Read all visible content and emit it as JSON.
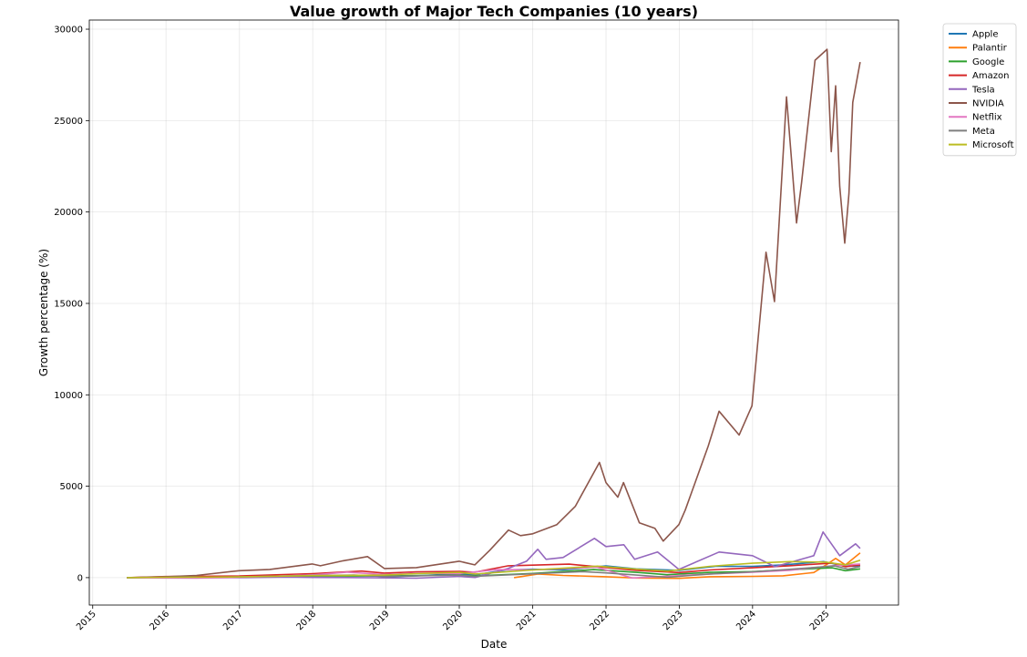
{
  "chart_data": {
    "type": "line",
    "title": "Value growth of Major Tech Companies (10 years)",
    "xlabel": "Date",
    "ylabel": "Growth percentage (%)",
    "xlim": [
      "2014-12-15",
      "2025-12-28"
    ],
    "ylim": [
      -1500,
      30500
    ],
    "x_ticks": [
      "2015",
      "2016",
      "2017",
      "2018",
      "2019",
      "2020",
      "2021",
      "2022",
      "2023",
      "2024",
      "2025"
    ],
    "y_ticks": [
      0,
      5000,
      10000,
      15000,
      20000,
      25000,
      30000
    ],
    "grid": true,
    "legend_position": "outside-top-right",
    "series": [
      {
        "name": "Apple",
        "color": "#1f77b4",
        "points": [
          [
            "2015-06-20",
            0
          ],
          [
            "2016-01-01",
            -10
          ],
          [
            "2016-06-01",
            -5
          ],
          [
            "2017-01-01",
            30
          ],
          [
            "2017-06-01",
            70
          ],
          [
            "2018-01-01",
            90
          ],
          [
            "2018-10-01",
            130
          ],
          [
            "2019-01-01",
            50
          ],
          [
            "2019-06-01",
            100
          ],
          [
            "2020-01-01",
            220
          ],
          [
            "2020-03-20",
            150
          ],
          [
            "2020-08-20",
            420
          ],
          [
            "2021-01-01",
            460
          ],
          [
            "2021-06-01",
            430
          ],
          [
            "2022-01-01",
            640
          ],
          [
            "2022-06-01",
            480
          ],
          [
            "2023-01-01",
            400
          ],
          [
            "2023-07-01",
            620
          ],
          [
            "2024-01-01",
            620
          ],
          [
            "2024-06-01",
            700
          ],
          [
            "2024-12-20",
            880
          ],
          [
            "2025-04-08",
            620
          ],
          [
            "2025-06-20",
            650
          ]
        ]
      },
      {
        "name": "Palantir",
        "color": "#ff7f0e",
        "points": [
          [
            "2020-09-30",
            0
          ],
          [
            "2021-01-27",
            200
          ],
          [
            "2021-06-01",
            120
          ],
          [
            "2022-01-01",
            50
          ],
          [
            "2022-06-01",
            -20
          ],
          [
            "2022-12-30",
            -40
          ],
          [
            "2023-06-01",
            50
          ],
          [
            "2024-01-01",
            70
          ],
          [
            "2024-06-01",
            100
          ],
          [
            "2024-11-01",
            280
          ],
          [
            "2025-01-01",
            700
          ],
          [
            "2025-02-18",
            1050
          ],
          [
            "2025-04-08",
            700
          ],
          [
            "2025-06-20",
            1350
          ]
        ]
      },
      {
        "name": "Google",
        "color": "#2ca02c",
        "points": [
          [
            "2015-06-20",
            0
          ],
          [
            "2016-01-01",
            30
          ],
          [
            "2017-01-01",
            40
          ],
          [
            "2018-01-01",
            90
          ],
          [
            "2019-01-01",
            90
          ],
          [
            "2020-01-01",
            150
          ],
          [
            "2020-03-20",
            90
          ],
          [
            "2021-01-01",
            230
          ],
          [
            "2021-11-01",
            440
          ],
          [
            "2022-06-01",
            290
          ],
          [
            "2022-11-01",
            160
          ],
          [
            "2023-06-01",
            290
          ],
          [
            "2024-01-01",
            330
          ],
          [
            "2024-07-01",
            430
          ],
          [
            "2025-02-01",
            540
          ],
          [
            "2025-04-08",
            380
          ],
          [
            "2025-06-20",
            480
          ]
        ]
      },
      {
        "name": "Amazon",
        "color": "#d62728",
        "points": [
          [
            "2015-06-20",
            0
          ],
          [
            "2016-01-01",
            60
          ],
          [
            "2017-01-01",
            90
          ],
          [
            "2018-01-01",
            220
          ],
          [
            "2018-09-01",
            360
          ],
          [
            "2018-12-24",
            250
          ],
          [
            "2019-06-01",
            320
          ],
          [
            "2020-01-01",
            340
          ],
          [
            "2020-03-20",
            300
          ],
          [
            "2020-09-01",
            650
          ],
          [
            "2021-07-01",
            740
          ],
          [
            "2022-06-01",
            400
          ],
          [
            "2022-12-30",
            280
          ],
          [
            "2023-06-01",
            420
          ],
          [
            "2024-01-01",
            540
          ],
          [
            "2024-07-01",
            650
          ],
          [
            "2025-02-01",
            800
          ],
          [
            "2025-04-08",
            600
          ],
          [
            "2025-06-20",
            700
          ]
        ]
      },
      {
        "name": "Tesla",
        "color": "#9467bd",
        "points": [
          [
            "2015-06-20",
            0
          ],
          [
            "2016-01-01",
            -5
          ],
          [
            "2017-01-01",
            0
          ],
          [
            "2017-09-01",
            30
          ],
          [
            "2018-01-01",
            10
          ],
          [
            "2018-09-01",
            0
          ],
          [
            "2019-06-01",
            -30
          ],
          [
            "2020-01-01",
            70
          ],
          [
            "2020-03-20",
            10
          ],
          [
            "2020-08-31",
            500
          ],
          [
            "2020-12-01",
            900
          ],
          [
            "2021-01-26",
            1550
          ],
          [
            "2021-03-08",
            1000
          ],
          [
            "2021-06-01",
            1100
          ],
          [
            "2021-11-04",
            2150
          ],
          [
            "2022-01-01",
            1700
          ],
          [
            "2022-03-31",
            1800
          ],
          [
            "2022-05-24",
            1000
          ],
          [
            "2022-09-15",
            1400
          ],
          [
            "2022-12-30",
            450
          ],
          [
            "2023-07-18",
            1400
          ],
          [
            "2024-01-01",
            1200
          ],
          [
            "2024-04-22",
            600
          ],
          [
            "2024-11-01",
            1200
          ],
          [
            "2024-12-17",
            2500
          ],
          [
            "2025-03-10",
            1200
          ],
          [
            "2025-05-28",
            1850
          ],
          [
            "2025-06-20",
            1600
          ]
        ]
      },
      {
        "name": "NVIDIA",
        "color": "#8c564b",
        "points": [
          [
            "2015-06-20",
            0
          ],
          [
            "2015-12-31",
            50
          ],
          [
            "2016-06-01",
            120
          ],
          [
            "2016-12-30",
            380
          ],
          [
            "2017-06-01",
            450
          ],
          [
            "2017-12-29",
            750
          ],
          [
            "2018-02-08",
            650
          ],
          [
            "2018-06-01",
            920
          ],
          [
            "2018-10-01",
            1150
          ],
          [
            "2018-12-24",
            500
          ],
          [
            "2019-06-01",
            550
          ],
          [
            "2019-12-31",
            900
          ],
          [
            "2020-03-18",
            700
          ],
          [
            "2020-06-01",
            1500
          ],
          [
            "2020-09-02",
            2600
          ],
          [
            "2020-11-01",
            2300
          ],
          [
            "2021-01-01",
            2400
          ],
          [
            "2021-05-01",
            2900
          ],
          [
            "2021-08-01",
            3900
          ],
          [
            "2021-11-29",
            6300
          ],
          [
            "2022-01-01",
            5200
          ],
          [
            "2022-03-01",
            4400
          ],
          [
            "2022-03-29",
            5200
          ],
          [
            "2022-06-16",
            3000
          ],
          [
            "2022-09-01",
            2700
          ],
          [
            "2022-10-13",
            2000
          ],
          [
            "2022-12-30",
            2900
          ],
          [
            "2023-01-31",
            3700
          ],
          [
            "2023-05-25",
            7200
          ],
          [
            "2023-07-18",
            9100
          ],
          [
            "2023-10-26",
            7800
          ],
          [
            "2023-12-29",
            9400
          ],
          [
            "2024-03-08",
            17800
          ],
          [
            "2024-04-19",
            15100
          ],
          [
            "2024-06-18",
            26300
          ],
          [
            "2024-08-07",
            19400
          ],
          [
            "2024-09-01",
            21600
          ],
          [
            "2024-11-07",
            28300
          ],
          [
            "2025-01-06",
            28900
          ],
          [
            "2025-01-27",
            23300
          ],
          [
            "2025-02-18",
            26900
          ],
          [
            "2025-03-10",
            21400
          ],
          [
            "2025-04-04",
            18300
          ],
          [
            "2025-04-25",
            21000
          ],
          [
            "2025-05-14",
            26000
          ],
          [
            "2025-06-20",
            28200
          ]
        ]
      },
      {
        "name": "Netflix",
        "color": "#e377c2",
        "points": [
          [
            "2015-06-20",
            0
          ],
          [
            "2016-01-01",
            -20
          ],
          [
            "2016-06-01",
            -30
          ],
          [
            "2017-01-01",
            20
          ],
          [
            "2018-01-01",
            150
          ],
          [
            "2018-06-20",
            300
          ],
          [
            "2018-12-24",
            170
          ],
          [
            "2019-06-01",
            240
          ],
          [
            "2020-01-01",
            230
          ],
          [
            "2020-07-10",
            440
          ],
          [
            "2021-01-01",
            430
          ],
          [
            "2021-11-17",
            570
          ],
          [
            "2022-05-11",
            -20
          ],
          [
            "2022-12-30",
            110
          ],
          [
            "2023-06-01",
            200
          ],
          [
            "2024-01-01",
            300
          ],
          [
            "2024-07-01",
            400
          ],
          [
            "2025-02-01",
            650
          ],
          [
            "2025-06-20",
            750
          ]
        ]
      },
      {
        "name": "Meta",
        "color": "#7f7f7f",
        "points": [
          [
            "2015-06-20",
            0
          ],
          [
            "2016-01-01",
            20
          ],
          [
            "2017-01-01",
            40
          ],
          [
            "2018-01-01",
            120
          ],
          [
            "2018-07-25",
            140
          ],
          [
            "2018-12-24",
            60
          ],
          [
            "2019-06-01",
            100
          ],
          [
            "2020-01-01",
            140
          ],
          [
            "2020-03-20",
            70
          ],
          [
            "2021-01-01",
            210
          ],
          [
            "2021-09-07",
            330
          ],
          [
            "2022-01-01",
            260
          ],
          [
            "2022-11-03",
            20
          ],
          [
            "2023-06-01",
            200
          ],
          [
            "2024-01-01",
            320
          ],
          [
            "2024-06-01",
            430
          ],
          [
            "2025-02-14",
            640
          ],
          [
            "2025-04-21",
            460
          ],
          [
            "2025-06-20",
            610
          ]
        ]
      },
      {
        "name": "Microsoft",
        "color": "#bcbd22",
        "points": [
          [
            "2015-06-20",
            0
          ],
          [
            "2016-01-01",
            20
          ],
          [
            "2017-01-01",
            40
          ],
          [
            "2018-01-01",
            110
          ],
          [
            "2018-12-24",
            140
          ],
          [
            "2019-06-01",
            220
          ],
          [
            "2020-01-01",
            290
          ],
          [
            "2020-03-20",
            200
          ],
          [
            "2021-01-01",
            420
          ],
          [
            "2021-11-19",
            630
          ],
          [
            "2022-06-01",
            470
          ],
          [
            "2022-11-04",
            360
          ],
          [
            "2023-06-01",
            620
          ],
          [
            "2024-01-01",
            790
          ],
          [
            "2024-07-05",
            880
          ],
          [
            "2025-01-01",
            850
          ],
          [
            "2025-04-08",
            700
          ],
          [
            "2025-06-20",
            950
          ]
        ]
      }
    ]
  }
}
